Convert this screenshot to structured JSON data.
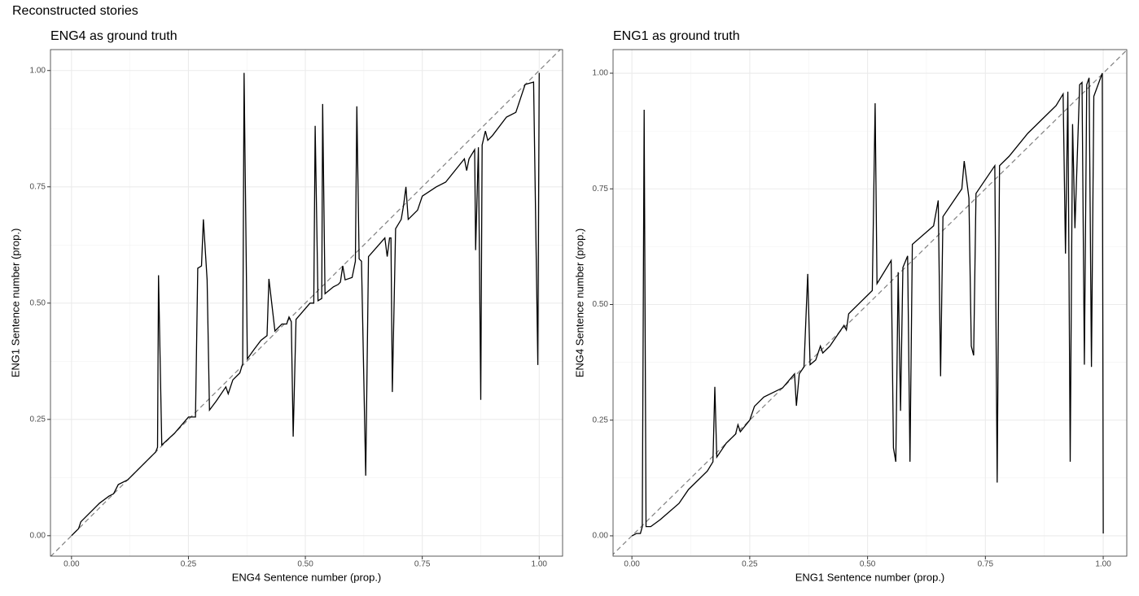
{
  "title": "Reconstructed stories",
  "chart_data": [
    {
      "type": "line",
      "title": "ENG4 as ground truth",
      "x_label": "ENG4 Sentence number (prop.)",
      "y_label": "ENG1 Sentence number (prop.)",
      "xlim": [
        -0.045,
        1.05
      ],
      "ylim": [
        -0.044,
        1.045
      ],
      "xticks": [
        {
          "value": 0,
          "label": "0.00"
        },
        0.25,
        {
          "value": 0.5,
          "label": "0.50"
        },
        0.75,
        {
          "value": 1,
          "label": "1.00"
        }
      ],
      "yticks": [
        {
          "value": 0,
          "label": "0.00"
        },
        0.25,
        {
          "value": 0.5,
          "label": "0.50"
        },
        0.75,
        {
          "value": 1,
          "label": "1.00"
        }
      ],
      "grid": true,
      "color": "#000000",
      "x": [
        0,
        0.015,
        0.02,
        0.03,
        0.06,
        0.08,
        0.09,
        0.1,
        0.12,
        0.17,
        0.18,
        0.184,
        0.186,
        0.193,
        0.22,
        0.25,
        0.265,
        0.27,
        0.278,
        0.282,
        0.29,
        0.295,
        0.31,
        0.33,
        0.335,
        0.345,
        0.36,
        0.366,
        0.369,
        0.376,
        0.39,
        0.405,
        0.418,
        0.422,
        0.435,
        0.45,
        0.46,
        0.465,
        0.47,
        0.474,
        0.48,
        0.51,
        0.518,
        0.521,
        0.527,
        0.535,
        0.537,
        0.542,
        0.56,
        0.57,
        0.575,
        0.58,
        0.585,
        0.6,
        0.607,
        0.61,
        0.615,
        0.62,
        0.629,
        0.635,
        0.67,
        0.675,
        0.68,
        0.683,
        0.686,
        0.693,
        0.705,
        0.71,
        0.715,
        0.72,
        0.74,
        0.75,
        0.78,
        0.8,
        0.84,
        0.845,
        0.85,
        0.862,
        0.864,
        0.87,
        0.875,
        0.878,
        0.885,
        0.89,
        0.9,
        0.93,
        0.95,
        0.96,
        0.97,
        0.988,
        0.997,
        1.0
      ],
      "values": [
        0,
        0.015,
        0.03,
        0.04,
        0.07,
        0.085,
        0.09,
        0.11,
        0.12,
        0.17,
        0.18,
        0.19,
        0.56,
        0.195,
        0.22,
        0.255,
        0.255,
        0.575,
        0.58,
        0.68,
        0.55,
        0.27,
        0.29,
        0.32,
        0.305,
        0.335,
        0.35,
        0.37,
        0.995,
        0.38,
        0.4,
        0.42,
        0.43,
        0.552,
        0.44,
        0.455,
        0.455,
        0.47,
        0.46,
        0.213,
        0.465,
        0.5,
        0.5,
        0.881,
        0.505,
        0.51,
        0.928,
        0.52,
        0.535,
        0.54,
        0.545,
        0.58,
        0.55,
        0.555,
        0.59,
        0.923,
        0.595,
        0.59,
        0.129,
        0.6,
        0.64,
        0.6,
        0.64,
        0.64,
        0.309,
        0.66,
        0.68,
        0.71,
        0.75,
        0.68,
        0.7,
        0.73,
        0.75,
        0.76,
        0.81,
        0.785,
        0.81,
        0.83,
        0.614,
        0.835,
        0.292,
        0.84,
        0.87,
        0.85,
        0.86,
        0.9,
        0.91,
        0.94,
        0.97,
        0.975,
        0.367,
        0.995
      ]
    },
    {
      "type": "line",
      "title": "ENG1 as ground truth",
      "x_label": "ENG1 Sentence number (prop.)",
      "y_label": "ENG4 Sentence number (prop.)",
      "xlim": [
        -0.04,
        1.05
      ],
      "ylim": [
        -0.044,
        1.051
      ],
      "xticks": [
        {
          "value": 0,
          "label": "0.00"
        },
        0.25,
        {
          "value": 0.5,
          "label": "0.50"
        },
        0.75,
        {
          "value": 1,
          "label": "1.00"
        }
      ],
      "yticks": [
        {
          "value": 0,
          "label": "0.00"
        },
        0.25,
        {
          "value": 0.5,
          "label": "0.50"
        },
        0.75,
        {
          "value": 1,
          "label": "1.00"
        }
      ],
      "grid": true,
      "color": "#000000",
      "x": [
        0,
        0.01,
        0.018,
        0.022,
        0.026,
        0.03,
        0.04,
        0.06,
        0.1,
        0.12,
        0.16,
        0.172,
        0.176,
        0.18,
        0.2,
        0.22,
        0.225,
        0.23,
        0.25,
        0.26,
        0.28,
        0.32,
        0.345,
        0.349,
        0.355,
        0.365,
        0.373,
        0.378,
        0.39,
        0.4,
        0.405,
        0.42,
        0.44,
        0.45,
        0.455,
        0.46,
        0.51,
        0.516,
        0.52,
        0.55,
        0.555,
        0.56,
        0.565,
        0.57,
        0.575,
        0.585,
        0.59,
        0.595,
        0.64,
        0.65,
        0.655,
        0.66,
        0.7,
        0.705,
        0.715,
        0.72,
        0.725,
        0.73,
        0.77,
        0.775,
        0.78,
        0.8,
        0.84,
        0.87,
        0.9,
        0.915,
        0.92,
        0.925,
        0.93,
        0.935,
        0.94,
        0.95,
        0.955,
        0.96,
        0.965,
        0.97,
        0.975,
        0.98,
        0.998,
        1.0
      ],
      "values": [
        0,
        0.005,
        0.005,
        0.02,
        0.921,
        0.02,
        0.02,
        0.035,
        0.07,
        0.1,
        0.14,
        0.16,
        0.322,
        0.17,
        0.2,
        0.22,
        0.24,
        0.225,
        0.25,
        0.28,
        0.3,
        0.32,
        0.35,
        0.281,
        0.35,
        0.365,
        0.566,
        0.37,
        0.38,
        0.41,
        0.395,
        0.41,
        0.44,
        0.455,
        0.445,
        0.48,
        0.53,
        0.935,
        0.545,
        0.595,
        0.19,
        0.16,
        0.57,
        0.27,
        0.58,
        0.605,
        0.16,
        0.63,
        0.67,
        0.725,
        0.345,
        0.69,
        0.75,
        0.81,
        0.73,
        0.41,
        0.39,
        0.74,
        0.8,
        0.115,
        0.8,
        0.82,
        0.87,
        0.9,
        0.93,
        0.955,
        0.61,
        0.96,
        0.16,
        0.89,
        0.665,
        0.975,
        0.98,
        0.37,
        0.975,
        0.99,
        0.365,
        0.95,
        1.0,
        0.005
      ]
    }
  ]
}
